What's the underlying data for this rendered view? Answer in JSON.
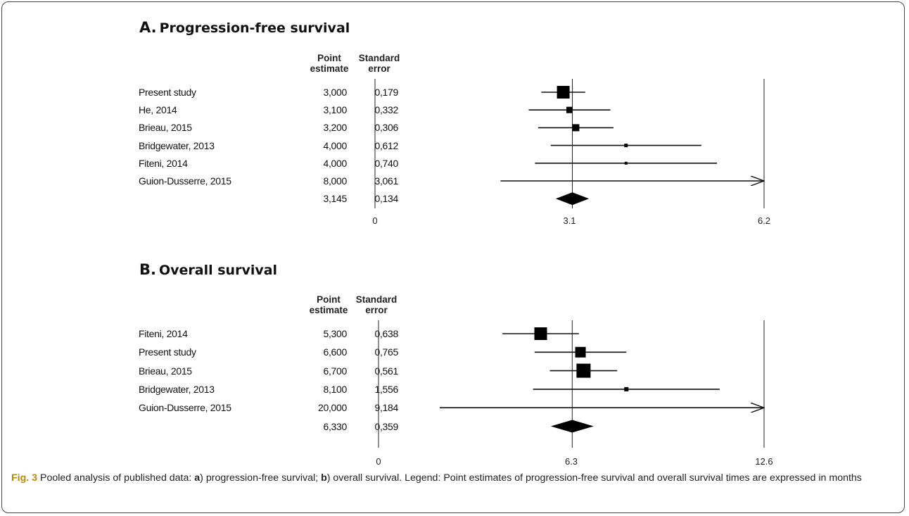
{
  "chart_data": [
    {
      "type": "forest",
      "panel_letter": "A.",
      "title": "Progression-free survival",
      "col1_header": [
        "Point",
        "estimate"
      ],
      "col2_header": [
        "Standard",
        "error"
      ],
      "xlim": [
        0,
        6.2
      ],
      "ticks": [
        "0",
        "3.1",
        "6.2"
      ],
      "ref_line": 3.145,
      "studies": [
        {
          "name": "Present study",
          "estimate": "3,000",
          "se": "0,179",
          "x": 3.0,
          "lo": 2.65,
          "hi": 3.35,
          "size": 18
        },
        {
          "name": "He, 2014",
          "estimate": "3,100",
          "se": "0,332",
          "x": 3.1,
          "lo": 2.45,
          "hi": 3.75,
          "size": 9
        },
        {
          "name": "Brieau, 2015",
          "estimate": "3,200",
          "se": "0,306",
          "x": 3.2,
          "lo": 2.6,
          "hi": 3.8,
          "size": 10
        },
        {
          "name": "Bridgewater, 2013",
          "estimate": "4,000",
          "se": "0,612",
          "x": 4.0,
          "lo": 2.8,
          "hi": 5.2,
          "size": 5
        },
        {
          "name": "Fiteni, 2014",
          "estimate": "4,000",
          "se": "0,740",
          "x": 4.0,
          "lo": 2.55,
          "hi": 5.45,
          "size": 4
        },
        {
          "name": "Guion-Dusserre, 2015",
          "estimate": "8,000",
          "se": "3,061",
          "x": 8.0,
          "lo": 2.0,
          "hi": 14.0,
          "size": 0
        }
      ],
      "pooled": {
        "estimate": "3,145",
        "se": "0,134",
        "x": 3.145,
        "lo": 2.88,
        "hi": 3.41
      }
    },
    {
      "type": "forest",
      "panel_letter": "B.",
      "title": "Overall survival",
      "col1_header": [
        "Point",
        "estimate"
      ],
      "col2_header": [
        "Standard",
        "error"
      ],
      "xlim": [
        0,
        12.6
      ],
      "ticks": [
        "0",
        "6.3",
        "12.6"
      ],
      "ref_line": 6.33,
      "studies": [
        {
          "name": "Fiteni, 2014",
          "estimate": "5,300",
          "se": "0,638",
          "x": 5.3,
          "lo": 4.05,
          "hi": 6.55,
          "size": 18
        },
        {
          "name": "Present study",
          "estimate": "6,600",
          "se": "0,765",
          "x": 6.6,
          "lo": 5.1,
          "hi": 8.1,
          "size": 15
        },
        {
          "name": "Brieau, 2015",
          "estimate": "6,700",
          "se": "0,561",
          "x": 6.7,
          "lo": 5.6,
          "hi": 7.8,
          "size": 20
        },
        {
          "name": "Bridgewater, 2013",
          "estimate": "8,100",
          "se": "1,556",
          "x": 8.1,
          "lo": 5.05,
          "hi": 11.15,
          "size": 6
        },
        {
          "name": "Guion-Dusserre, 2015",
          "estimate": "20,000",
          "se": "9,184",
          "x": 20.0,
          "lo": 2.0,
          "hi": 38.0,
          "size": 0
        }
      ],
      "pooled": {
        "estimate": "6,330",
        "se": "0,359",
        "x": 6.33,
        "lo": 5.63,
        "hi": 7.03
      }
    }
  ],
  "caption": {
    "fig_label": "Fig. 3",
    "part1": " Pooled analysis of published data: ",
    "a": "a",
    "part2": ") progression-free survival; ",
    "b": "b",
    "part3": ") overall survival. Legend: Point estimates of progression-free survival and overall survival times are expressed in months"
  }
}
